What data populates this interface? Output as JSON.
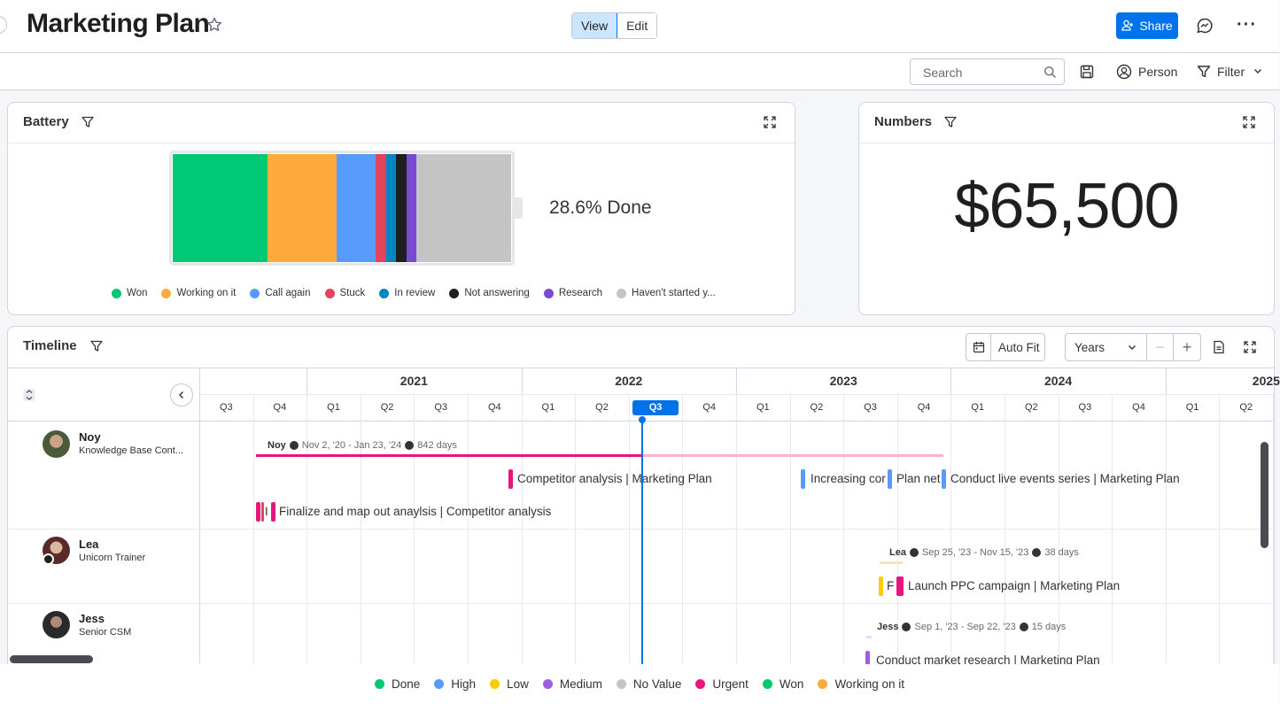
{
  "header": {
    "title": "Marketing Plan",
    "view_label": "View",
    "edit_label": "Edit",
    "share_label": "Share"
  },
  "toolbar": {
    "search_placeholder": "Search",
    "person_label": "Person",
    "filter_label": "Filter"
  },
  "battery": {
    "title": "Battery",
    "done_text": "28.6% Done",
    "segments": [
      {
        "label": "Won",
        "color": "#00c875",
        "fraction": 0.28
      },
      {
        "label": "Working on it",
        "color": "#fdab3d",
        "fraction": 0.205
      },
      {
        "label": "Call again",
        "color": "#579bfc",
        "fraction": 0.115
      },
      {
        "label": "Stuck",
        "color": "#e2445c",
        "fraction": 0.03
      },
      {
        "label": "In review",
        "color": "#0086c0",
        "fraction": 0.03
      },
      {
        "label": "Not answering",
        "color": "#1f1f1f",
        "fraction": 0.03
      },
      {
        "label": "Research",
        "color": "#784bd1",
        "fraction": 0.03
      },
      {
        "label": "Haven't started y...",
        "color": "#c4c4c4",
        "fraction": 0.28
      }
    ]
  },
  "numbers": {
    "title": "Numbers",
    "value": "$65,500"
  },
  "timeline": {
    "title": "Timeline",
    "auto_fit_label": "Auto Fit",
    "scale_label": "Years",
    "years": [
      "2021",
      "2022",
      "2023",
      "2024",
      "2025"
    ],
    "quarters": [
      "Q3",
      "Q4",
      "Q1",
      "Q2",
      "Q3",
      "Q4",
      "Q1",
      "Q2",
      "Q3",
      "Q4",
      "Q1",
      "Q2",
      "Q3",
      "Q4",
      "Q1",
      "Q2",
      "Q3",
      "Q4",
      "Q1",
      "Q2"
    ],
    "current_quarter": "Q3",
    "people": [
      {
        "name": "Noy",
        "role": "Knowledge Base Cont...",
        "summary_name": "Noy",
        "summary_range": "Nov 2, '20 - Jan 23, '24",
        "summary_days": "842 days",
        "items": [
          "Competitor analysis | Marketing Plan",
          "Increasing cor",
          "Plan net",
          "Conduct live events series | Marketing Plan",
          "I",
          "Finalize and map out anaylsis | Competitor analysis"
        ]
      },
      {
        "name": "Lea",
        "role": "Unicorn Trainer",
        "summary_name": "Lea",
        "summary_range": "Sep 25, '23 - Nov 15, '23",
        "summary_days": "38 days",
        "items": [
          "F",
          "Launch PPC campaign | Marketing Plan"
        ]
      },
      {
        "name": "Jess",
        "role": "Senior CSM",
        "summary_name": "Jess",
        "summary_range": "Sep 1, '23 - Sep 22, '23",
        "summary_days": "15 days",
        "items": [
          "Conduct market research | Marketing Plan"
        ]
      }
    ]
  },
  "legend_bottom": [
    {
      "label": "Done",
      "color": "#00c875"
    },
    {
      "label": "High",
      "color": "#579bfc"
    },
    {
      "label": "Low",
      "color": "#ffcb00"
    },
    {
      "label": "Medium",
      "color": "#a25ddc"
    },
    {
      "label": "No Value",
      "color": "#c4c4c4"
    },
    {
      "label": "Urgent",
      "color": "#e8157d"
    },
    {
      "label": "Won",
      "color": "#00c875"
    },
    {
      "label": "Working on it",
      "color": "#fdab3d"
    }
  ]
}
